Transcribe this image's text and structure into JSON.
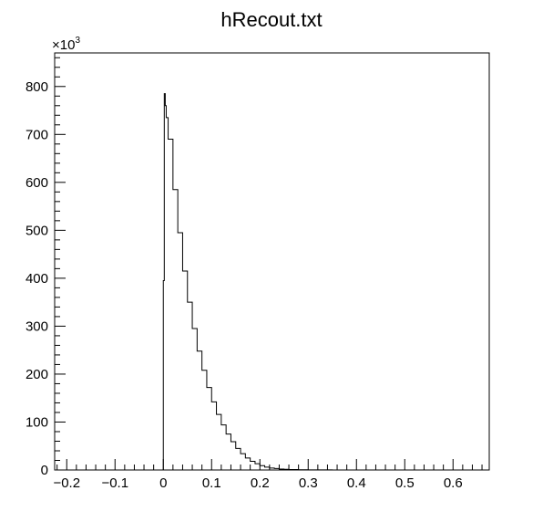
{
  "chart_data": {
    "type": "line",
    "title": "hRecout.txt",
    "xlabel": "",
    "ylabel": "",
    "y_multiplier": "×10",
    "y_multiplier_exponent": "3",
    "xlim": [
      -0.225,
      0.675
    ],
    "ylim": [
      0,
      870
    ],
    "x_tick_labels": [
      "−0.2",
      "−0.1",
      "0",
      "0.1",
      "0.2",
      "0.3",
      "0.4",
      "0.5",
      "0.6"
    ],
    "x_ticks": [
      -0.2,
      -0.1,
      0,
      0.1,
      0.2,
      0.3,
      0.4,
      0.5,
      0.6
    ],
    "y_tick_labels": [
      "0",
      "100",
      "200",
      "300",
      "400",
      "500",
      "600",
      "700",
      "800"
    ],
    "y_ticks": [
      0,
      100,
      200,
      300,
      400,
      500,
      600,
      700,
      800
    ],
    "grid": false,
    "series": [
      {
        "style": "histogram-step",
        "x": [
          -0.002,
          0.0,
          0.002,
          0.004,
          0.006,
          0.01,
          0.02,
          0.03,
          0.04,
          0.05,
          0.06,
          0.07,
          0.08,
          0.09,
          0.1,
          0.11,
          0.12,
          0.13,
          0.14,
          0.15,
          0.16,
          0.17,
          0.18,
          0.19,
          0.2,
          0.21,
          0.22,
          0.23,
          0.24,
          0.25,
          0.26,
          0.28,
          0.3,
          0.35,
          0.4,
          0.5,
          0.6,
          0.67
        ],
        "y": [
          0,
          395,
          785,
          760,
          735,
          690,
          585,
          495,
          415,
          350,
          295,
          248,
          208,
          172,
          142,
          116,
          94,
          75,
          59,
          45,
          34,
          25,
          18,
          13,
          9,
          6,
          4,
          3,
          2,
          1.5,
          1,
          0.5,
          0.3,
          0,
          0,
          0,
          0,
          0
        ]
      }
    ]
  }
}
